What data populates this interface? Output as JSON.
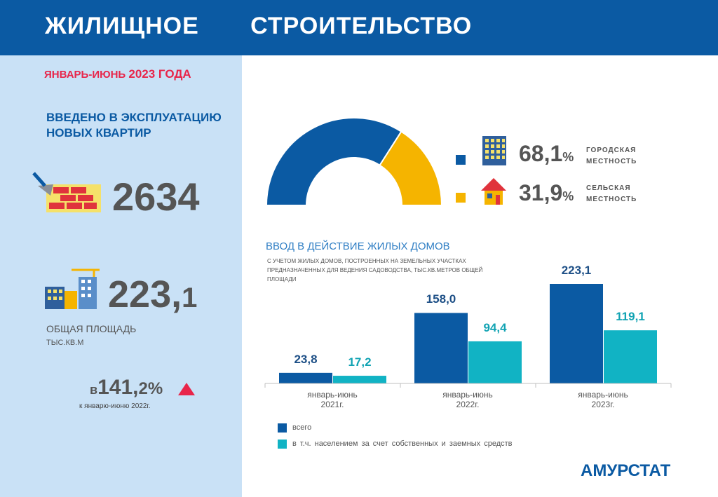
{
  "header": {
    "title": "ЖИЛИЩНОЕ   СТРОИТЕЛЬСТВО"
  },
  "sidebar": {
    "period_prefix": "ЯНВАРЬ-ИЮНЬ",
    "period_year": "2023 ГОДА",
    "new_flats_label": "ВВЕДЕНО В ЭКСПЛУАТАЦИЮ НОВЫХ КВАРТИР",
    "new_flats_value": "2634",
    "area_int": "223,",
    "area_dec": "1",
    "area_label": "ОБЩАЯ ПЛОЩАДЬ",
    "area_unit": "ТЫС.КВ.М",
    "growth_prefix": "в",
    "growth_int": "141,",
    "growth_dec": "2%",
    "growth_note": "к январю-июню  2022г."
  },
  "donut": {
    "urban_value": "68,1",
    "urban_sign": "%",
    "urban_label_1": "ГОРОДСКАЯ",
    "urban_label_2": "МЕСТНОСТЬ",
    "rural_value": "31,9",
    "rural_sign": "%",
    "rural_label_1": "СЕЛЬСКАЯ",
    "rural_label_2": "МЕСТНОСТЬ"
  },
  "bar_chart": {
    "title": "ВВОД В ДЕЙСТВИЕ ЖИЛЫХ ДОМОВ",
    "note": "С  УЧЕТОМ  ЖИЛЫХ ДОМОВ, ПОСТРОЕННЫХ НА ЗЕМЕЛЬНЫХ  УЧАСТКАХ ПРЕДНАЗНАЧЕННЫХ ДЛЯ ВЕДЕНИЯ САДОВОДСТВА, ТЫС.КВ.МЕТРОВ  ОБЩЕЙ ПЛОЩАДИ",
    "bar_labels": [
      [
        "23,8",
        "17,2"
      ],
      [
        "158,0",
        "94,4"
      ],
      [
        "223,1",
        "119,1"
      ]
    ],
    "categories": [
      [
        "январь-июнь",
        "2021г."
      ],
      [
        "январь-июнь",
        "2022г."
      ],
      [
        "январь-июнь",
        "2023г."
      ]
    ],
    "legend": [
      "всего",
      "в т.ч.  населением  за счет  собственных  и  заемных  средств"
    ]
  },
  "brand": "АМУРСТАТ",
  "colors": {
    "header": "#0b5aa3",
    "sidebar": "#c9e1f6",
    "urban": "#0b5aa3",
    "rural": "#f5b400",
    "total": "#0b5aa3",
    "population": "#11b3c4",
    "accent": "#e8254a"
  },
  "chart_data": [
    {
      "type": "pie",
      "labels": [
        "ГОРОДСКАЯ МЕСТНОСТЬ",
        "СЕЛЬСКАЯ МЕСТНОСТЬ"
      ],
      "values": [
        68.1,
        31.9
      ],
      "colors": [
        "#0b5aa3",
        "#f5b400"
      ]
    },
    {
      "type": "bar",
      "title": "ВВОД В ДЕЙСТВИЕ ЖИЛЫХ ДОМОВ",
      "categories": [
        "январь-июнь 2021г.",
        "январь-июнь 2022г.",
        "январь-июнь 2023г."
      ],
      "series": [
        {
          "name": "всего",
          "values": [
            23.8,
            158.0,
            223.1
          ],
          "color": "#0b5aa3"
        },
        {
          "name": "в т.ч.  населением  за счет  собственных  и  заемных  средств",
          "values": [
            17.2,
            94.4,
            119.1
          ],
          "color": "#11b3c4"
        }
      ],
      "ylim": [
        0,
        223.1
      ],
      "grid": false,
      "legend": "bottom"
    }
  ]
}
